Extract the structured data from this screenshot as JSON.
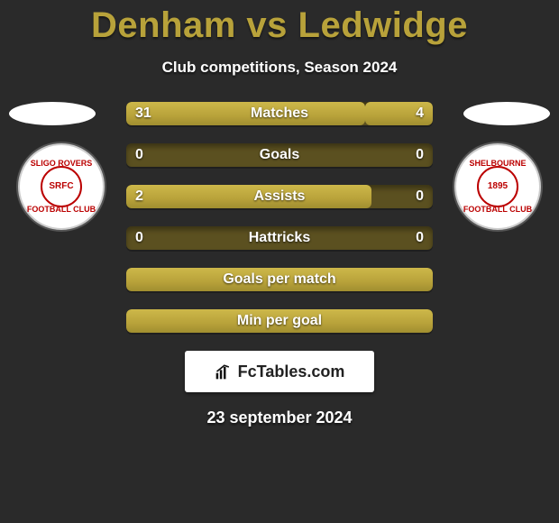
{
  "background_color": "#2a2a2a",
  "accent_color": "#b8a23a",
  "bar_track_color": "#5b5020",
  "title": "Denham vs Ledwidge",
  "subtitle": "Club competitions, Season 2024",
  "date_text": "23 september 2024",
  "brand": {
    "text_left": "Fc",
    "text_right": "Tables.com"
  },
  "crest_left": {
    "top_text": "SLIGO ROVERS",
    "center_text": "SRFC",
    "bottom_text": "FOOTBALL CLUB",
    "ring_color": "#b00020"
  },
  "crest_right": {
    "top_text": "SHELBOURNE",
    "center_text": "1895",
    "bottom_text": "FOOTBALL CLUB",
    "ring_color": "#b00020"
  },
  "bars": [
    {
      "label": "Matches",
      "left_value": 31,
      "right_value": 4,
      "left_pct": 78,
      "right_pct": 22,
      "show_values": true
    },
    {
      "label": "Goals",
      "left_value": 0,
      "right_value": 0,
      "left_pct": 0,
      "right_pct": 0,
      "show_values": true
    },
    {
      "label": "Assists",
      "left_value": 2,
      "right_value": 0,
      "left_pct": 80,
      "right_pct": 0,
      "show_values": true
    },
    {
      "label": "Hattricks",
      "left_value": 0,
      "right_value": 0,
      "left_pct": 0,
      "right_pct": 0,
      "show_values": true
    },
    {
      "label": "Goals per match",
      "left_value": null,
      "right_value": null,
      "left_pct": 100,
      "right_pct": 0,
      "show_values": false,
      "full": true
    },
    {
      "label": "Min per goal",
      "left_value": null,
      "right_value": null,
      "left_pct": 100,
      "right_pct": 0,
      "show_values": false,
      "full": true
    }
  ]
}
